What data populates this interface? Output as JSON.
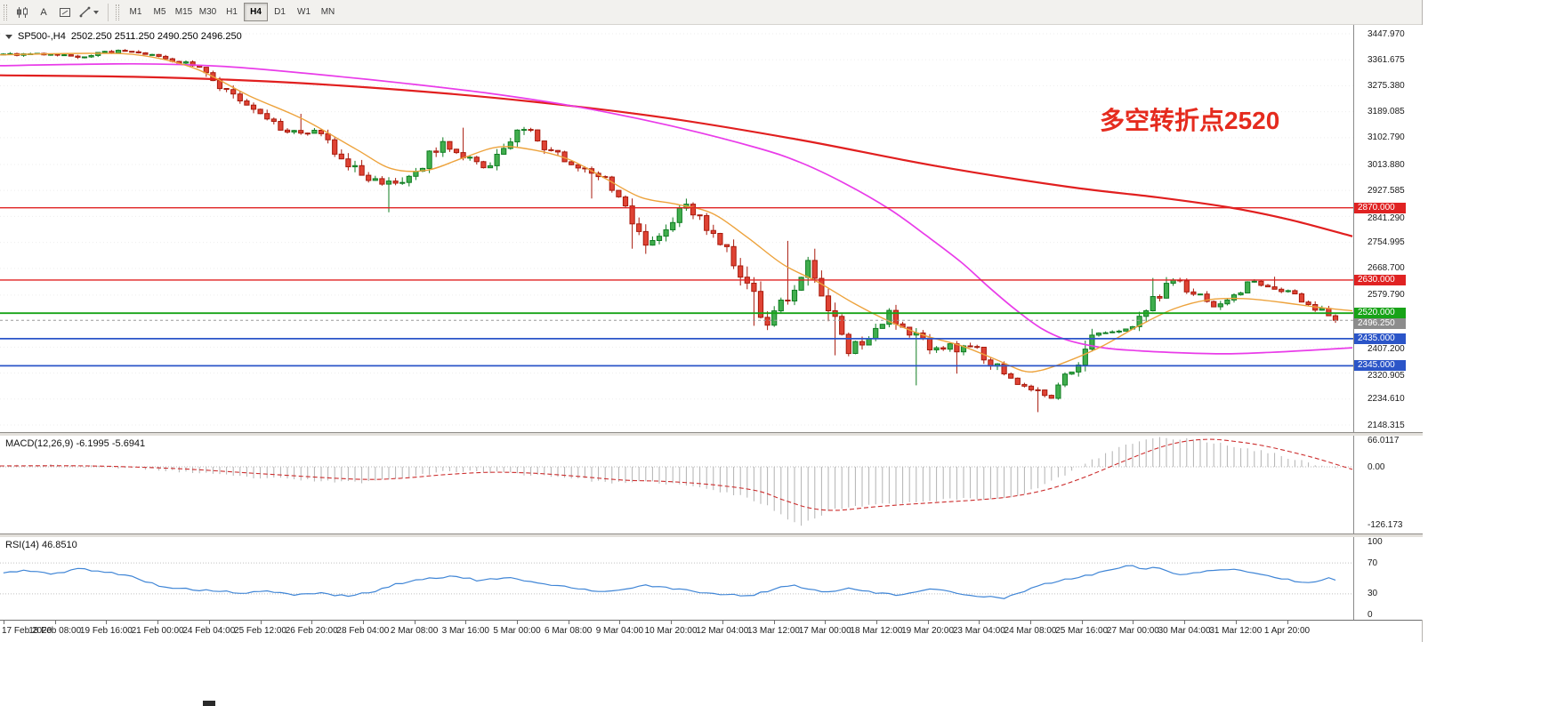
{
  "toolbar": {
    "a_label": "A",
    "timeframes": [
      "M1",
      "M5",
      "M15",
      "M30",
      "H1",
      "H4",
      "D1",
      "W1",
      "MN"
    ],
    "active_timeframe": "H4",
    "icon_buttons": [
      "candlestick-chart-icon",
      "text-a-button",
      "frame-icon",
      "objects-dropdown"
    ]
  },
  "chart": {
    "symbol_period": "SP500-,H4",
    "ohlc": "2502.250 2511.250 2490.250 2496.250",
    "open": "2502.250",
    "high": "2511.250",
    "low": "2490.250",
    "close": "2496.250"
  },
  "annotation": {
    "text": "多空转折点2520",
    "color": "#e52b1e"
  },
  "price_axis": {
    "labels": [
      "3447.970",
      "3361.675",
      "3275.380",
      "3189.085",
      "3102.790",
      "3013.880",
      "2927.585",
      "2841.290",
      "2754.995",
      "2668.700",
      "2579.790",
      "2407.200",
      "2320.905",
      "2234.610",
      "2148.315"
    ],
    "tags": [
      {
        "text": "2870.000",
        "color": "#e02222"
      },
      {
        "text": "2630.000",
        "color": "#e02222"
      },
      {
        "text": "2520.000",
        "color": "#17a317"
      },
      {
        "text": "2496.250",
        "color": "#8c8c8c"
      },
      {
        "text": "2435.000",
        "color": "#2b55c8"
      },
      {
        "text": "2345.000",
        "color": "#2b55c8"
      }
    ]
  },
  "macd": {
    "label": "MACD(12,26,9)",
    "value_main": "-6.1995",
    "value_signal": "-5.6941",
    "axis": [
      "66.0117",
      "0.00",
      "-126.173"
    ]
  },
  "rsi": {
    "label": "RSI(14)",
    "value": "46.8510",
    "axis": [
      "100",
      "70",
      "30",
      "0"
    ]
  },
  "time_axis": {
    "labels": [
      "17 Feb 2020",
      "18 Feb 08:00",
      "19 Feb 16:00",
      "21 Feb 00:00",
      "24 Feb 04:00",
      "25 Feb 12:00",
      "26 Feb 20:00",
      "28 Feb 04:00",
      "2 Mar 08:00",
      "3 Mar 16:00",
      "5 Mar 00:00",
      "6 Mar 08:00",
      "9 Mar 04:00",
      "10 Mar 20:00",
      "12 Mar 04:00",
      "13 Mar 12:00",
      "17 Mar 00:00",
      "18 Mar 12:00",
      "19 Mar 20:00",
      "23 Mar 04:00",
      "24 Mar 08:00",
      "25 Mar 16:00",
      "27 Mar 00:00",
      "30 Mar 04:00",
      "31 Mar 12:00",
      "1 Apr 20:00"
    ]
  },
  "chart_data": {
    "type": "candlestick",
    "symbol": "SP500-",
    "timeframe": "H4",
    "bars_per_day": 6,
    "price_range": [
      2148.315,
      3447.97
    ],
    "current_price": {
      "price": 2496.25,
      "text": "2496.250",
      "color": "#8c8c8c"
    },
    "levels": [
      {
        "price": 2870,
        "color": "#e02222",
        "w": 1.4
      },
      {
        "price": 2630,
        "color": "#e02222",
        "w": 1.4
      },
      {
        "price": 2520,
        "color": "#17a317",
        "w": 1.8
      },
      {
        "price": 2435,
        "color": "#2b55c8",
        "w": 1.8
      },
      {
        "price": 2345,
        "color": "#2b55c8",
        "w": 1.8
      }
    ],
    "daily": [
      {
        "date": "17 Feb",
        "close": 3383
      },
      {
        "date": "18 Feb",
        "close": 3370
      },
      {
        "date": "19 Feb",
        "close": 3393
      },
      {
        "date": "20 Feb",
        "close": 3373
      },
      {
        "date": "21 Feb",
        "close": 3337
      },
      {
        "date": "24 Feb",
        "close": 3225,
        "high": 3260
      },
      {
        "date": "25 Feb",
        "close": 3128
      },
      {
        "date": "26 Feb",
        "close": 3116,
        "high": 3182
      },
      {
        "date": "27 Feb",
        "close": 2978
      },
      {
        "date": "28 Feb",
        "close": 2954,
        "low": 2855
      },
      {
        "date": "2 Mar",
        "close": 3090
      },
      {
        "date": "3 Mar",
        "close": 3003,
        "high": 3136
      },
      {
        "date": "4 Mar",
        "close": 3130
      },
      {
        "date": "5 Mar",
        "close": 3023
      },
      {
        "date": "6 Mar",
        "close": 2972,
        "low": 2901
      },
      {
        "date": "9 Mar",
        "close": 2746,
        "low": 2734
      },
      {
        "date": "10 Mar",
        "close": 2882
      },
      {
        "date": "11 Mar",
        "close": 2741
      },
      {
        "date": "12 Mar",
        "close": 2480,
        "low": 2478
      },
      {
        "date": "13 Mar",
        "close": 2695,
        "high": 2760
      },
      {
        "date": "16 Mar",
        "close": 2386,
        "low": 2380
      },
      {
        "date": "17 Mar",
        "close": 2529
      },
      {
        "date": "18 Mar",
        "close": 2398,
        "low": 2280
      },
      {
        "date": "19 Mar",
        "close": 2409,
        "low": 2319
      },
      {
        "date": "20 Mar",
        "close": 2304
      },
      {
        "date": "23 Mar",
        "close": 2237,
        "low": 2191
      },
      {
        "date": "24 Mar",
        "close": 2447
      },
      {
        "date": "25 Mar",
        "close": 2475
      },
      {
        "date": "26 Mar",
        "close": 2630,
        "high": 2637
      },
      {
        "date": "27 Mar",
        "close": 2541
      },
      {
        "date": "30 Mar",
        "close": 2626
      },
      {
        "date": "31 Mar",
        "close": 2584,
        "high": 2641
      },
      {
        "date": "1 Apr",
        "close": 2496.25
      }
    ],
    "ma_fast_color": "#eda33d",
    "ma_fast": [
      [
        0,
        3378
      ],
      [
        100,
        3383
      ],
      [
        160,
        3376
      ],
      [
        220,
        3332
      ],
      [
        280,
        3242
      ],
      [
        340,
        3165
      ],
      [
        400,
        3065
      ],
      [
        440,
        3000
      ],
      [
        480,
        2995
      ],
      [
        520,
        3035
      ],
      [
        560,
        3072
      ],
      [
        600,
        3062
      ],
      [
        640,
        3030
      ],
      [
        680,
        2968
      ],
      [
        720,
        2905
      ],
      [
        760,
        2882
      ],
      [
        800,
        2852
      ],
      [
        840,
        2772
      ],
      [
        880,
        2682
      ],
      [
        920,
        2622
      ],
      [
        960,
        2552
      ],
      [
        1000,
        2492
      ],
      [
        1040,
        2445
      ],
      [
        1080,
        2412
      ],
      [
        1120,
        2365
      ],
      [
        1150,
        2328
      ],
      [
        1170,
        2330
      ],
      [
        1200,
        2360
      ],
      [
        1240,
        2412
      ],
      [
        1280,
        2478
      ],
      [
        1320,
        2535
      ],
      [
        1360,
        2565
      ],
      [
        1400,
        2568
      ],
      [
        1440,
        2556
      ],
      [
        1480,
        2540
      ],
      [
        1520,
        2528
      ]
    ],
    "ma_mid_color": "#e93ce9",
    "ma_mid": [
      [
        0,
        3342
      ],
      [
        150,
        3348
      ],
      [
        250,
        3340
      ],
      [
        350,
        3315
      ],
      [
        450,
        3285
      ],
      [
        550,
        3250
      ],
      [
        650,
        3205
      ],
      [
        750,
        3145
      ],
      [
        850,
        3070
      ],
      [
        900,
        3020
      ],
      [
        950,
        2950
      ],
      [
        1000,
        2865
      ],
      [
        1040,
        2780
      ],
      [
        1080,
        2690
      ],
      [
        1110,
        2610
      ],
      [
        1140,
        2535
      ],
      [
        1170,
        2470
      ],
      [
        1200,
        2430
      ],
      [
        1240,
        2405
      ],
      [
        1280,
        2395
      ],
      [
        1330,
        2388
      ],
      [
        1380,
        2385
      ],
      [
        1430,
        2390
      ],
      [
        1480,
        2398
      ],
      [
        1520,
        2405
      ]
    ],
    "ma_slow_color": "#e11f1f",
    "ma_slow": [
      [
        0,
        3310
      ],
      [
        150,
        3305
      ],
      [
        300,
        3290
      ],
      [
        450,
        3262
      ],
      [
        600,
        3222
      ],
      [
        750,
        3168
      ],
      [
        900,
        3095
      ],
      [
        1050,
        3010
      ],
      [
        1200,
        2940
      ],
      [
        1300,
        2905
      ],
      [
        1380,
        2872
      ],
      [
        1450,
        2830
      ],
      [
        1520,
        2775
      ]
    ],
    "macd_range": [
      -126.173,
      66.0117
    ],
    "macd_hist": [
      [
        0,
        3
      ],
      [
        40,
        4
      ],
      [
        80,
        2
      ],
      [
        120,
        0
      ],
      [
        160,
        -4
      ],
      [
        200,
        -10
      ],
      [
        240,
        -17
      ],
      [
        280,
        -23
      ],
      [
        320,
        -27
      ],
      [
        360,
        -31
      ],
      [
        400,
        -34
      ],
      [
        430,
        -29
      ],
      [
        460,
        -20
      ],
      [
        490,
        -13
      ],
      [
        520,
        -9
      ],
      [
        550,
        -11
      ],
      [
        580,
        -15
      ],
      [
        610,
        -19
      ],
      [
        640,
        -23
      ],
      [
        670,
        -31
      ],
      [
        700,
        -36
      ],
      [
        730,
        -33
      ],
      [
        760,
        -38
      ],
      [
        790,
        -47
      ],
      [
        820,
        -58
      ],
      [
        850,
        -74
      ],
      [
        870,
        -94
      ],
      [
        885,
        -112
      ],
      [
        900,
        -126
      ],
      [
        915,
        -114
      ],
      [
        930,
        -98
      ],
      [
        950,
        -88
      ],
      [
        970,
        -84
      ],
      [
        990,
        -81
      ],
      [
        1010,
        -79
      ],
      [
        1030,
        -77
      ],
      [
        1050,
        -74
      ],
      [
        1070,
        -71
      ],
      [
        1090,
        -69
      ],
      [
        1110,
        -71
      ],
      [
        1130,
        -68
      ],
      [
        1150,
        -58
      ],
      [
        1170,
        -43
      ],
      [
        1190,
        -24
      ],
      [
        1210,
        -4
      ],
      [
        1230,
        16
      ],
      [
        1250,
        36
      ],
      [
        1270,
        50
      ],
      [
        1290,
        60
      ],
      [
        1310,
        64
      ],
      [
        1330,
        61
      ],
      [
        1350,
        57
      ],
      [
        1370,
        51
      ],
      [
        1390,
        44
      ],
      [
        1410,
        37
      ],
      [
        1430,
        29
      ],
      [
        1450,
        19
      ],
      [
        1470,
        9
      ],
      [
        1490,
        1
      ],
      [
        1520,
        -6.2
      ]
    ],
    "macd_signal": [
      [
        0,
        2
      ],
      [
        100,
        2
      ],
      [
        200,
        -4
      ],
      [
        300,
        -16
      ],
      [
        400,
        -27
      ],
      [
        450,
        -25
      ],
      [
        500,
        -17
      ],
      [
        550,
        -12
      ],
      [
        600,
        -14
      ],
      [
        650,
        -21
      ],
      [
        700,
        -29
      ],
      [
        750,
        -32
      ],
      [
        800,
        -39
      ],
      [
        850,
        -52
      ],
      [
        880,
        -72
      ],
      [
        910,
        -90
      ],
      [
        940,
        -95
      ],
      [
        980,
        -88
      ],
      [
        1020,
        -82
      ],
      [
        1060,
        -77
      ],
      [
        1100,
        -72
      ],
      [
        1140,
        -64
      ],
      [
        1180,
        -48
      ],
      [
        1220,
        -22
      ],
      [
        1260,
        10
      ],
      [
        1300,
        40
      ],
      [
        1330,
        55
      ],
      [
        1360,
        60
      ],
      [
        1390,
        55
      ],
      [
        1420,
        46
      ],
      [
        1450,
        33
      ],
      [
        1480,
        18
      ],
      [
        1520,
        -5.7
      ]
    ],
    "rsi_range": [
      0,
      100
    ],
    "rsi_levels": [
      70,
      30
    ],
    "rsi_line": [
      [
        0,
        56
      ],
      [
        30,
        61
      ],
      [
        60,
        55
      ],
      [
        90,
        63
      ],
      [
        120,
        58
      ],
      [
        150,
        52
      ],
      [
        180,
        40
      ],
      [
        210,
        36
      ],
      [
        240,
        34
      ],
      [
        270,
        31
      ],
      [
        300,
        33
      ],
      [
        330,
        29
      ],
      [
        360,
        31
      ],
      [
        390,
        27
      ],
      [
        420,
        33
      ],
      [
        450,
        44
      ],
      [
        480,
        50
      ],
      [
        510,
        53
      ],
      [
        540,
        47
      ],
      [
        570,
        51
      ],
      [
        600,
        44
      ],
      [
        630,
        41
      ],
      [
        660,
        35
      ],
      [
        690,
        33
      ],
      [
        720,
        41
      ],
      [
        750,
        38
      ],
      [
        780,
        33
      ],
      [
        810,
        30
      ],
      [
        840,
        27
      ],
      [
        870,
        36
      ],
      [
        890,
        42
      ],
      [
        910,
        36
      ],
      [
        930,
        32
      ],
      [
        950,
        37
      ],
      [
        970,
        34
      ],
      [
        990,
        31
      ],
      [
        1010,
        29
      ],
      [
        1030,
        33
      ],
      [
        1050,
        36
      ],
      [
        1070,
        32
      ],
      [
        1090,
        29
      ],
      [
        1110,
        26
      ],
      [
        1130,
        25
      ],
      [
        1150,
        33
      ],
      [
        1170,
        41
      ],
      [
        1190,
        47
      ],
      [
        1210,
        51
      ],
      [
        1230,
        56
      ],
      [
        1250,
        62
      ],
      [
        1270,
        67
      ],
      [
        1285,
        61
      ],
      [
        1300,
        65
      ],
      [
        1315,
        58
      ],
      [
        1330,
        55
      ],
      [
        1350,
        59
      ],
      [
        1370,
        61
      ],
      [
        1390,
        62
      ],
      [
        1410,
        57
      ],
      [
        1430,
        52
      ],
      [
        1450,
        48
      ],
      [
        1470,
        44
      ],
      [
        1490,
        50
      ],
      [
        1520,
        47
      ]
    ]
  }
}
